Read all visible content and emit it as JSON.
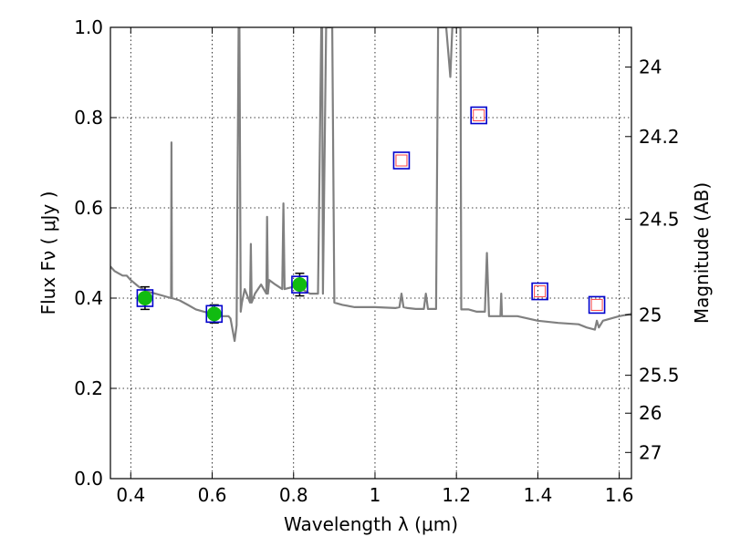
{
  "chart_data": {
    "type": "scatter",
    "xlabel": "Wavelength  λ (μm)",
    "ylabel": "Flux  Fν  ( μJy )",
    "y2label": "Magnitude (AB)",
    "xlim": [
      0.35,
      1.63
    ],
    "ylim": [
      0.0,
      1.0
    ],
    "x_ticks": [
      0.4,
      0.6,
      0.8,
      1.0,
      1.2,
      1.4,
      1.6
    ],
    "x_tick_labels": [
      "0.4",
      "0.6",
      "0.8",
      "1",
      "1.2",
      "1.4",
      "1.6"
    ],
    "y_ticks": [
      0.0,
      0.2,
      0.4,
      0.6,
      0.8,
      1.0
    ],
    "y_tick_labels": [
      "0.0",
      "0.2",
      "0.4",
      "0.6",
      "0.8",
      "1.0"
    ],
    "y2_ticks": [
      {
        "label": "24",
        "flux": 0.912
      },
      {
        "label": "24.2",
        "flux": 0.758
      },
      {
        "label": "24.5",
        "flux": 0.575
      },
      {
        "label": "25",
        "flux": 0.363
      },
      {
        "label": "25.5",
        "flux": 0.229
      },
      {
        "label": "26",
        "flux": 0.145
      },
      {
        "label": "27",
        "flux": 0.058
      }
    ],
    "grid": true,
    "colors": {
      "model": "#808080",
      "filled_marker": "#11bb11",
      "box_marker": "#0000cc",
      "inner_marker": "#ff4444",
      "errorbar": "#000000"
    },
    "model_spectrum": {
      "x": [
        0.35,
        0.36,
        0.37,
        0.38,
        0.39,
        0.4,
        0.42,
        0.44,
        0.46,
        0.48,
        0.499,
        0.5,
        0.501,
        0.52,
        0.54,
        0.56,
        0.58,
        0.6,
        0.62,
        0.64,
        0.645,
        0.655,
        0.66,
        0.665,
        0.667,
        0.67,
        0.673,
        0.68,
        0.693,
        0.695,
        0.697,
        0.705,
        0.72,
        0.733,
        0.735,
        0.737,
        0.74,
        0.755,
        0.772,
        0.775,
        0.778,
        0.8,
        0.82,
        0.84,
        0.86,
        0.868,
        0.87,
        0.872,
        0.88,
        0.885,
        0.89,
        0.895,
        0.9,
        0.92,
        0.95,
        1.0,
        1.05,
        1.06,
        1.065,
        1.07,
        1.08,
        1.1,
        1.12,
        1.125,
        1.13,
        1.15,
        1.155,
        1.16,
        1.175,
        1.185,
        1.19,
        1.195,
        1.21,
        1.212,
        1.23,
        1.25,
        1.27,
        1.275,
        1.28,
        1.3,
        1.308,
        1.31,
        1.312,
        1.35,
        1.4,
        1.45,
        1.5,
        1.52,
        1.54,
        1.545,
        1.55,
        1.56,
        1.6,
        1.63
      ],
      "y": [
        0.47,
        0.46,
        0.455,
        0.45,
        0.45,
        0.44,
        0.425,
        0.415,
        0.41,
        0.405,
        0.4,
        0.745,
        0.4,
        0.395,
        0.385,
        0.375,
        0.37,
        0.365,
        0.36,
        0.36,
        0.355,
        0.305,
        0.34,
        1.0,
        1.0,
        0.37,
        0.39,
        0.42,
        0.39,
        0.52,
        0.39,
        0.41,
        0.43,
        0.41,
        0.58,
        0.41,
        0.44,
        0.43,
        0.42,
        0.61,
        0.42,
        0.425,
        0.42,
        0.41,
        0.41,
        1.0,
        1.0,
        0.41,
        1.0,
        1.0,
        1.0,
        1.0,
        0.39,
        0.385,
        0.38,
        0.38,
        0.378,
        0.38,
        0.41,
        0.38,
        0.378,
        0.376,
        0.376,
        0.41,
        0.376,
        0.376,
        1.0,
        1.0,
        1.0,
        0.89,
        1.0,
        1.0,
        1.0,
        0.375,
        0.375,
        0.37,
        0.37,
        0.5,
        0.36,
        0.36,
        0.36,
        0.41,
        0.36,
        0.36,
        0.35,
        0.345,
        0.342,
        0.335,
        0.33,
        0.35,
        0.335,
        0.35,
        0.36,
        0.365
      ]
    },
    "filled_points": [
      {
        "x": 0.435,
        "y": 0.4,
        "err": 0.025
      },
      {
        "x": 0.605,
        "y": 0.365,
        "err": 0.02
      },
      {
        "x": 0.815,
        "y": 0.43,
        "err": 0.025
      }
    ],
    "box_points": [
      {
        "x": 0.435,
        "y": 0.4
      },
      {
        "x": 0.605,
        "y": 0.365
      },
      {
        "x": 0.815,
        "y": 0.43
      },
      {
        "x": 1.065,
        "y": 0.705
      },
      {
        "x": 1.255,
        "y": 0.805
      },
      {
        "x": 1.405,
        "y": 0.415
      },
      {
        "x": 1.545,
        "y": 0.385
      }
    ],
    "inner_points": [
      {
        "x": 1.065,
        "y": 0.705
      },
      {
        "x": 1.255,
        "y": 0.805
      },
      {
        "x": 1.405,
        "y": 0.415
      },
      {
        "x": 1.545,
        "y": 0.385
      }
    ]
  }
}
